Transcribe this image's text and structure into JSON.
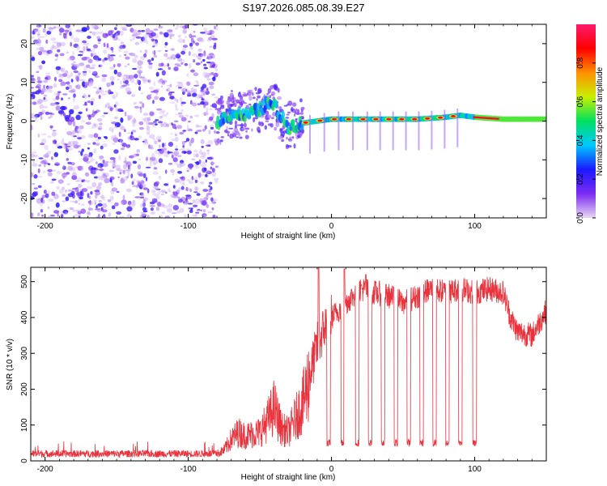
{
  "title": "S197.2026.085.08.39.E27",
  "chart_data": [
    {
      "type": "heatmap",
      "name": "spectrogram",
      "xlabel": "Height of straight line (km)",
      "ylabel": "Frequency (Hz)",
      "xlim": [
        -210,
        150
      ],
      "ylim": [
        -25,
        25
      ],
      "xticks": [
        -200,
        -100,
        0,
        100
      ],
      "yticks": [
        20,
        10,
        0,
        -10,
        -20
      ],
      "colorbar": {
        "label": "Normalized spectral amplitude",
        "range": [
          0,
          1
        ],
        "ticks": [
          "0.0",
          "0.2",
          "0.4",
          "0.6",
          "0.8"
        ],
        "colors": [
          "#e8d8f4",
          "#7b2bf2",
          "#1a1aff",
          "#00c8ff",
          "#00e060",
          "#c8f000",
          "#ff9000",
          "#ff0000",
          "#ff1a6e"
        ]
      },
      "noise_region_x": [
        -210,
        -80
      ],
      "ridge": {
        "x": [
          -80,
          -70,
          -60,
          -50,
          -45,
          -40,
          -35,
          -30,
          -25,
          -20,
          -10,
          0,
          20,
          40,
          60,
          80,
          90,
          100,
          120,
          150
        ],
        "freq_hz": [
          -0.5,
          2.0,
          1.5,
          3.0,
          4.5,
          4.0,
          1.0,
          -1.5,
          -1.0,
          -0.5,
          0.0,
          0.5,
          0.5,
          0.5,
          0.5,
          1.0,
          1.5,
          1.0,
          0.5,
          0.5
        ]
      }
    },
    {
      "type": "line",
      "name": "snr",
      "xlabel": "Height of straight line (km)",
      "ylabel": "SNR (10 * v/v)",
      "xlim": [
        -210,
        150
      ],
      "ylim": [
        0,
        540
      ],
      "xticks": [
        -200,
        -100,
        0,
        100
      ],
      "yticks": [
        0,
        100,
        200,
        300,
        400,
        500
      ],
      "color": "#e8323c",
      "envelope": {
        "x": [
          -210,
          -80,
          -75,
          -70,
          -65,
          -60,
          -50,
          -45,
          -40,
          -35,
          -30,
          -20,
          -15,
          -10,
          -5,
          0,
          10,
          20,
          30,
          40,
          50,
          60,
          70,
          80,
          90,
          100,
          110,
          120,
          125,
          130,
          140,
          150
        ],
        "y": [
          20,
          20,
          30,
          60,
          80,
          70,
          80,
          110,
          150,
          90,
          80,
          160,
          240,
          320,
          370,
          400,
          440,
          480,
          470,
          460,
          440,
          460,
          480,
          470,
          480,
          470,
          480,
          470,
          400,
          360,
          350,
          420
        ]
      },
      "dips": [
        -2,
        8,
        18,
        27,
        36,
        45,
        54,
        63,
        72,
        81,
        90,
        100
      ],
      "dip_level": 50,
      "spikes": [
        {
          "x": -9,
          "y": 540
        },
        {
          "x": 9,
          "y": 535
        },
        {
          "x": 24,
          "y": 520
        }
      ]
    }
  ]
}
